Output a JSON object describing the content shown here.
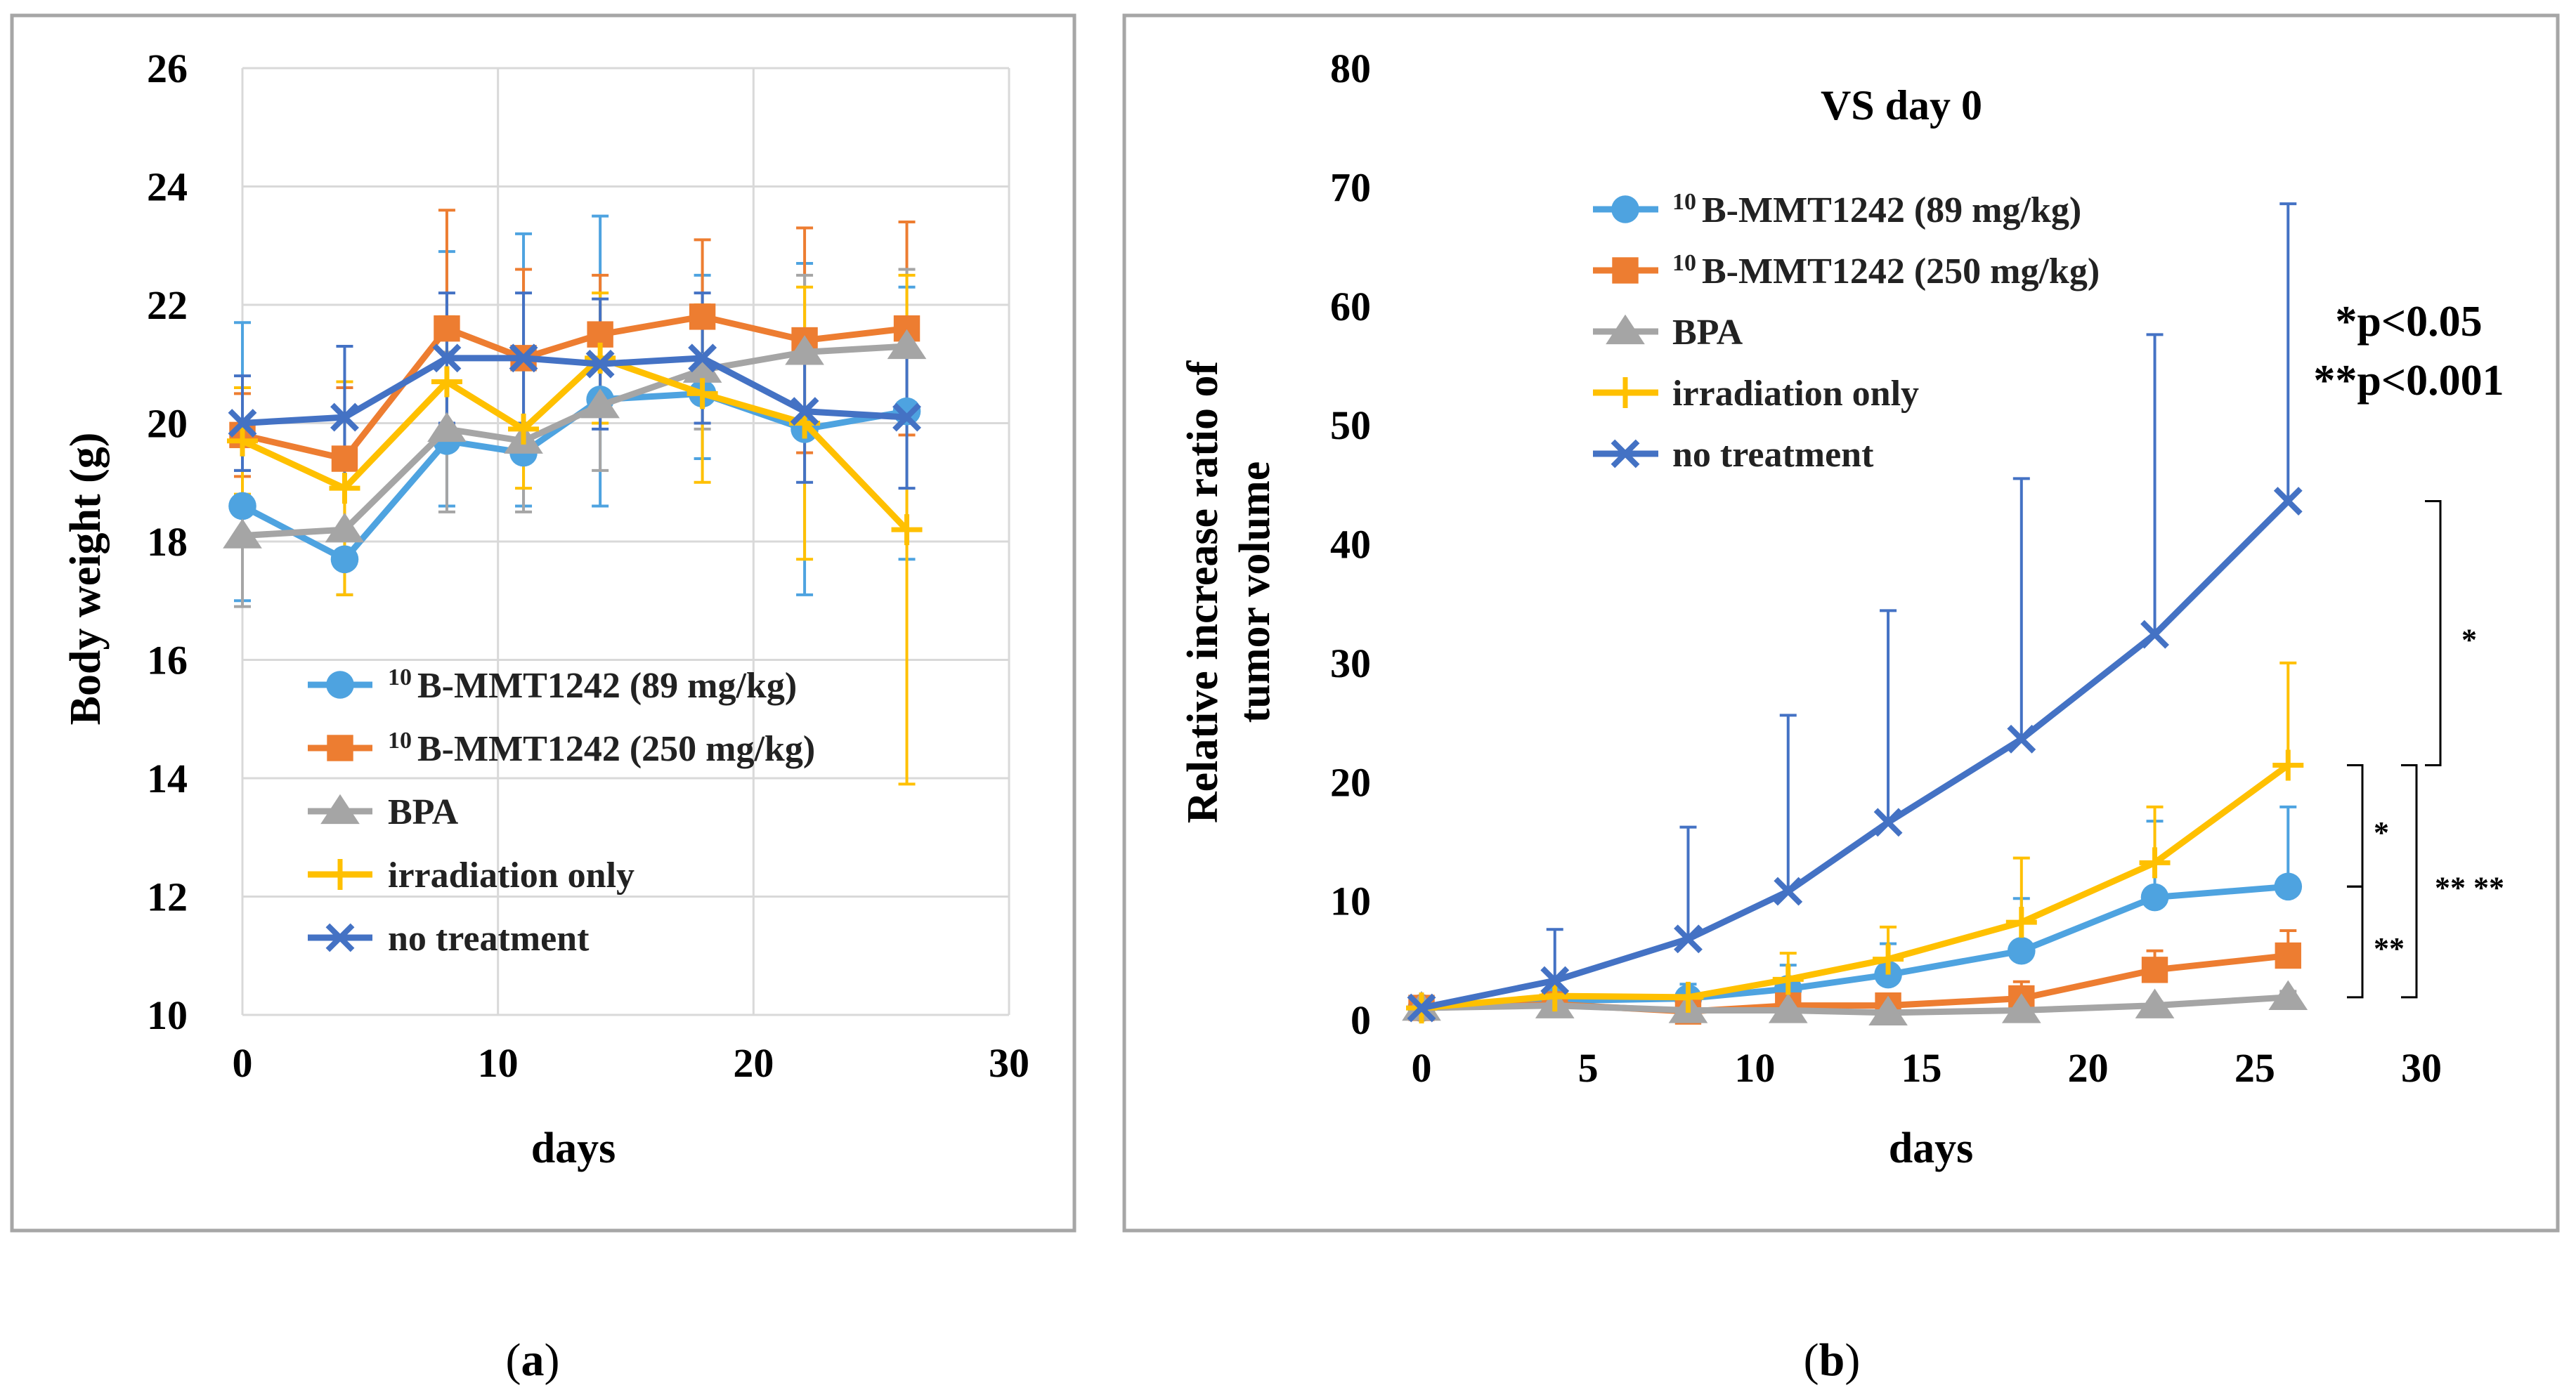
{
  "chart_data": [
    {
      "type": "line",
      "panel": "a",
      "caption": "a",
      "title": "",
      "xlabel": "days",
      "ylabel": "Body weight (g)",
      "xlim": [
        0,
        30
      ],
      "ylim": [
        10,
        26
      ],
      "xticks": [
        0,
        10,
        20,
        30
      ],
      "yticks": [
        10,
        12,
        14,
        16,
        18,
        20,
        22,
        24,
        26
      ],
      "grid": true,
      "legend_position": "bottom-left",
      "x": [
        0,
        4,
        8,
        11,
        14,
        18,
        22,
        26
      ],
      "series": [
        {
          "name": "¹⁰B-MMT1242 (89 mg/kg)",
          "sup": "10",
          "label": "B-MMT1242 (89 mg/kg)",
          "color": "#4ea3e0",
          "marker": "circle",
          "values": [
            18.6,
            17.7,
            19.7,
            19.5,
            20.4,
            20.5,
            19.9,
            20.2
          ],
          "error_upper": [
            21.7,
            20.7,
            22.9,
            23.2,
            23.5,
            22.5,
            22.7,
            22.3
          ],
          "error_lower": [
            17.0,
            17.1,
            18.6,
            18.6,
            18.6,
            19.4,
            17.1,
            17.7
          ]
        },
        {
          "name": "¹⁰B-MMT1242 (250 mg/kg)",
          "sup": "10",
          "label": "B-MMT1242 (250 mg/kg)",
          "color": "#ed7d31",
          "marker": "square",
          "values": [
            19.8,
            19.4,
            21.6,
            21.1,
            21.5,
            21.8,
            21.4,
            21.6
          ],
          "error_upper": [
            20.5,
            20.6,
            23.6,
            22.6,
            22.5,
            23.1,
            23.3,
            23.4
          ],
          "error_lower": [
            19.1,
            18.2,
            19.6,
            19.6,
            20.5,
            20.5,
            19.5,
            19.8
          ]
        },
        {
          "name": "BPA",
          "sup": "",
          "label": "BPA",
          "color": "#a5a5a5",
          "marker": "triangle",
          "values": [
            18.1,
            18.2,
            19.9,
            19.7,
            20.3,
            20.9,
            21.2,
            21.3
          ],
          "error_upper": [
            19.2,
            19.3,
            21.2,
            20.9,
            21.4,
            21.9,
            22.5,
            22.6
          ],
          "error_lower": [
            16.9,
            17.1,
            18.5,
            18.5,
            19.2,
            19.9,
            19.9,
            20.0
          ]
        },
        {
          "name": "irradiation only",
          "sup": "",
          "label": "irradiation only",
          "color": "#ffc000",
          "marker": "plus",
          "values": [
            19.7,
            18.9,
            20.7,
            19.9,
            21.1,
            20.5,
            20.0,
            18.2
          ],
          "error_upper": [
            20.6,
            20.7,
            21.8,
            20.9,
            22.2,
            22.0,
            22.3,
            22.5
          ],
          "error_lower": [
            18.8,
            17.1,
            19.6,
            18.9,
            20.0,
            19.0,
            17.7,
            13.9
          ]
        },
        {
          "name": "no treatment",
          "sup": "",
          "label": "no treatment",
          "color": "#4472c4",
          "marker": "x",
          "values": [
            20.0,
            20.1,
            21.1,
            21.1,
            21.0,
            21.1,
            20.2,
            20.1
          ],
          "error_upper": [
            20.8,
            21.3,
            22.2,
            22.2,
            22.1,
            22.2,
            21.4,
            21.3
          ],
          "error_lower": [
            19.2,
            18.9,
            20.0,
            20.0,
            19.9,
            20.0,
            19.0,
            18.9
          ]
        }
      ]
    },
    {
      "type": "line",
      "panel": "b",
      "caption": "b",
      "title": "VS day 0",
      "xlabel": "days",
      "ylabel": "Relative increase ratio of tumor volume",
      "ylabel_lines": [
        "Relative increase ratio of",
        "tumor volume"
      ],
      "xlim": [
        0,
        30
      ],
      "ylim": [
        0,
        80
      ],
      "xticks": [
        0,
        5,
        10,
        15,
        20,
        25,
        30
      ],
      "yticks": [
        0,
        10,
        20,
        30,
        40,
        50,
        60,
        70,
        80
      ],
      "grid": false,
      "legend_position": "top-left",
      "x": [
        0,
        4,
        8,
        11,
        14,
        18,
        22,
        26
      ],
      "series": [
        {
          "name": "¹⁰B-MMT1242 (89 mg/kg)",
          "sup": "10",
          "label": "B-MMT1242 (89 mg/kg)",
          "color": "#4ea3e0",
          "marker": "circle",
          "values": [
            1.0,
            1.6,
            1.8,
            2.6,
            3.8,
            5.8,
            10.3,
            11.2
          ],
          "error_upper": [
            1.0,
            2.2,
            3.0,
            4.6,
            6.4,
            10.2,
            16.7,
            17.9
          ]
        },
        {
          "name": "¹⁰B-MMT1242 (250 mg/kg)",
          "sup": "10",
          "label": "B-MMT1242 (250 mg/kg)",
          "color": "#ed7d31",
          "marker": "square",
          "values": [
            1.0,
            1.3,
            0.7,
            1.2,
            1.2,
            1.8,
            4.2,
            5.4
          ],
          "error_upper": [
            1.0,
            1.6,
            1.0,
            1.7,
            1.7,
            3.2,
            5.8,
            7.5
          ]
        },
        {
          "name": "BPA",
          "sup": "",
          "label": "BPA",
          "color": "#a5a5a5",
          "marker": "triangle",
          "values": [
            1.0,
            1.2,
            0.8,
            0.8,
            0.6,
            0.8,
            1.2,
            1.9
          ],
          "error_upper": [
            1.0,
            1.4,
            1.0,
            1.0,
            0.8,
            1.0,
            1.5,
            2.4
          ]
        },
        {
          "name": "irradiation only",
          "sup": "",
          "label": "irradiation only",
          "color": "#ffc000",
          "marker": "plus",
          "values": [
            1.0,
            2.0,
            1.9,
            3.4,
            5.1,
            8.2,
            13.2,
            21.4
          ],
          "error_upper": [
            1.0,
            2.6,
            2.6,
            5.6,
            7.8,
            13.6,
            17.9,
            30.0
          ]
        },
        {
          "name": "no treatment",
          "sup": "",
          "label": "no treatment",
          "color": "#4472c4",
          "marker": "x",
          "values": [
            1.0,
            3.3,
            6.8,
            10.8,
            16.6,
            23.6,
            32.4,
            43.6
          ],
          "error_upper": [
            1.0,
            7.6,
            16.2,
            25.6,
            34.4,
            45.5,
            57.6,
            68.6
          ]
        }
      ],
      "annotations": {
        "significance": [
          "*p<0.05",
          "**p<0.001"
        ],
        "brackets": [
          {
            "label": "*",
            "from": 21.4,
            "to": 43.6
          },
          {
            "label": "*",
            "from": 11.2,
            "to": 21.4
          },
          {
            "label": "**",
            "from": 1.9,
            "to": 11.2
          },
          {
            "label": "** **",
            "from": 1.9,
            "to": 21.4
          }
        ]
      }
    }
  ]
}
